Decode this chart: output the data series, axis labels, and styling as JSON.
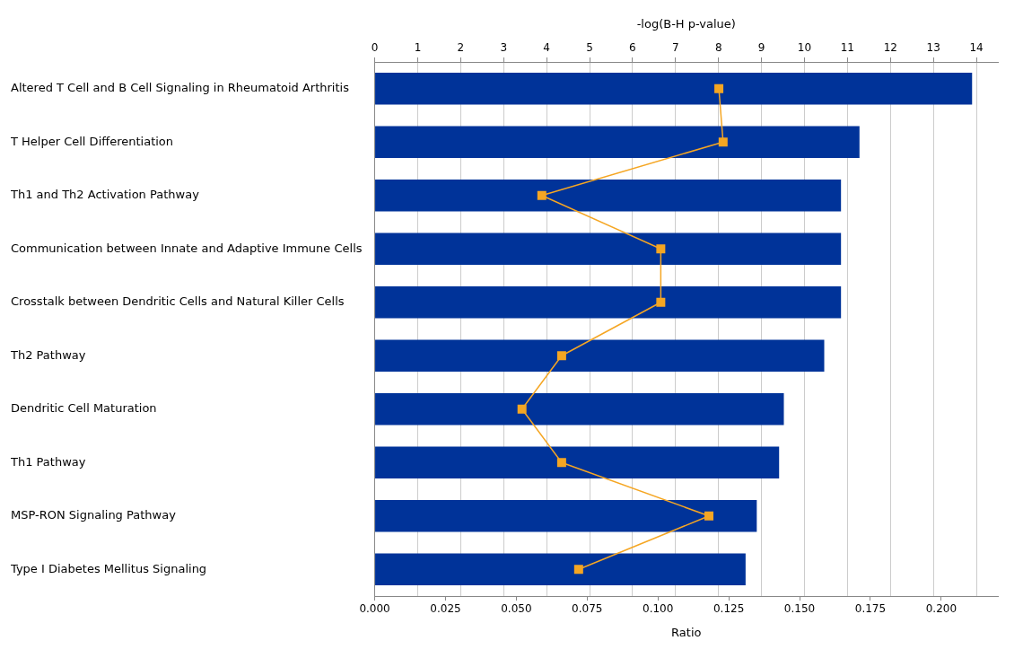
{
  "chart_data": {
    "type": "bar",
    "orientation": "horizontal",
    "xlabel": "Ratio",
    "x2label": "-log(B-H p-value)",
    "categories": [
      "Altered T Cell and B Cell Signaling in Rheumatoid Arthritis",
      "T Helper Cell Differentiation",
      "Th1 and Th2 Activation Pathway",
      "Communication between Innate and Adaptive Immune Cells",
      "Crosstalk between Dendritic Cells and Natural Killer Cells",
      "Th2 Pathway",
      "Dendritic Cell Maturation",
      "Th1 Pathway",
      "MSP-RON Signaling Pathway",
      "Type I Diabetes Mellitus Signaling"
    ],
    "series": [
      {
        "axis": "x2",
        "color": "#003399",
        "values": [
          13.9,
          11.28,
          10.85,
          10.85,
          10.85,
          10.46,
          9.52,
          9.41,
          8.89,
          8.63
        ]
      },
      {
        "type": "line",
        "color": "#f5a623",
        "marker": "square",
        "line_style": "solid",
        "values": [
          0.1215,
          0.123,
          0.059,
          0.101,
          0.101,
          0.066,
          0.052,
          0.066,
          0.118,
          0.072
        ]
      }
    ],
    "xlim": [
      0,
      0.22
    ],
    "xticks": [
      {
        "value": 0,
        "label": "0.000"
      },
      0.025,
      {
        "value": 0.05,
        "label": "0.050"
      },
      0.075,
      {
        "value": 0.1,
        "label": "0.100"
      },
      0.125,
      {
        "value": 0.15,
        "label": "0.150"
      },
      0.175,
      {
        "value": 0.2,
        "label": "0.200"
      }
    ],
    "x2lim": [
      0,
      14.5
    ],
    "x2ticks": [
      0,
      1,
      2,
      3,
      4,
      5,
      6,
      7,
      8,
      9,
      10,
      11,
      12,
      13,
      14
    ],
    "grid": "x",
    "legend": false
  }
}
